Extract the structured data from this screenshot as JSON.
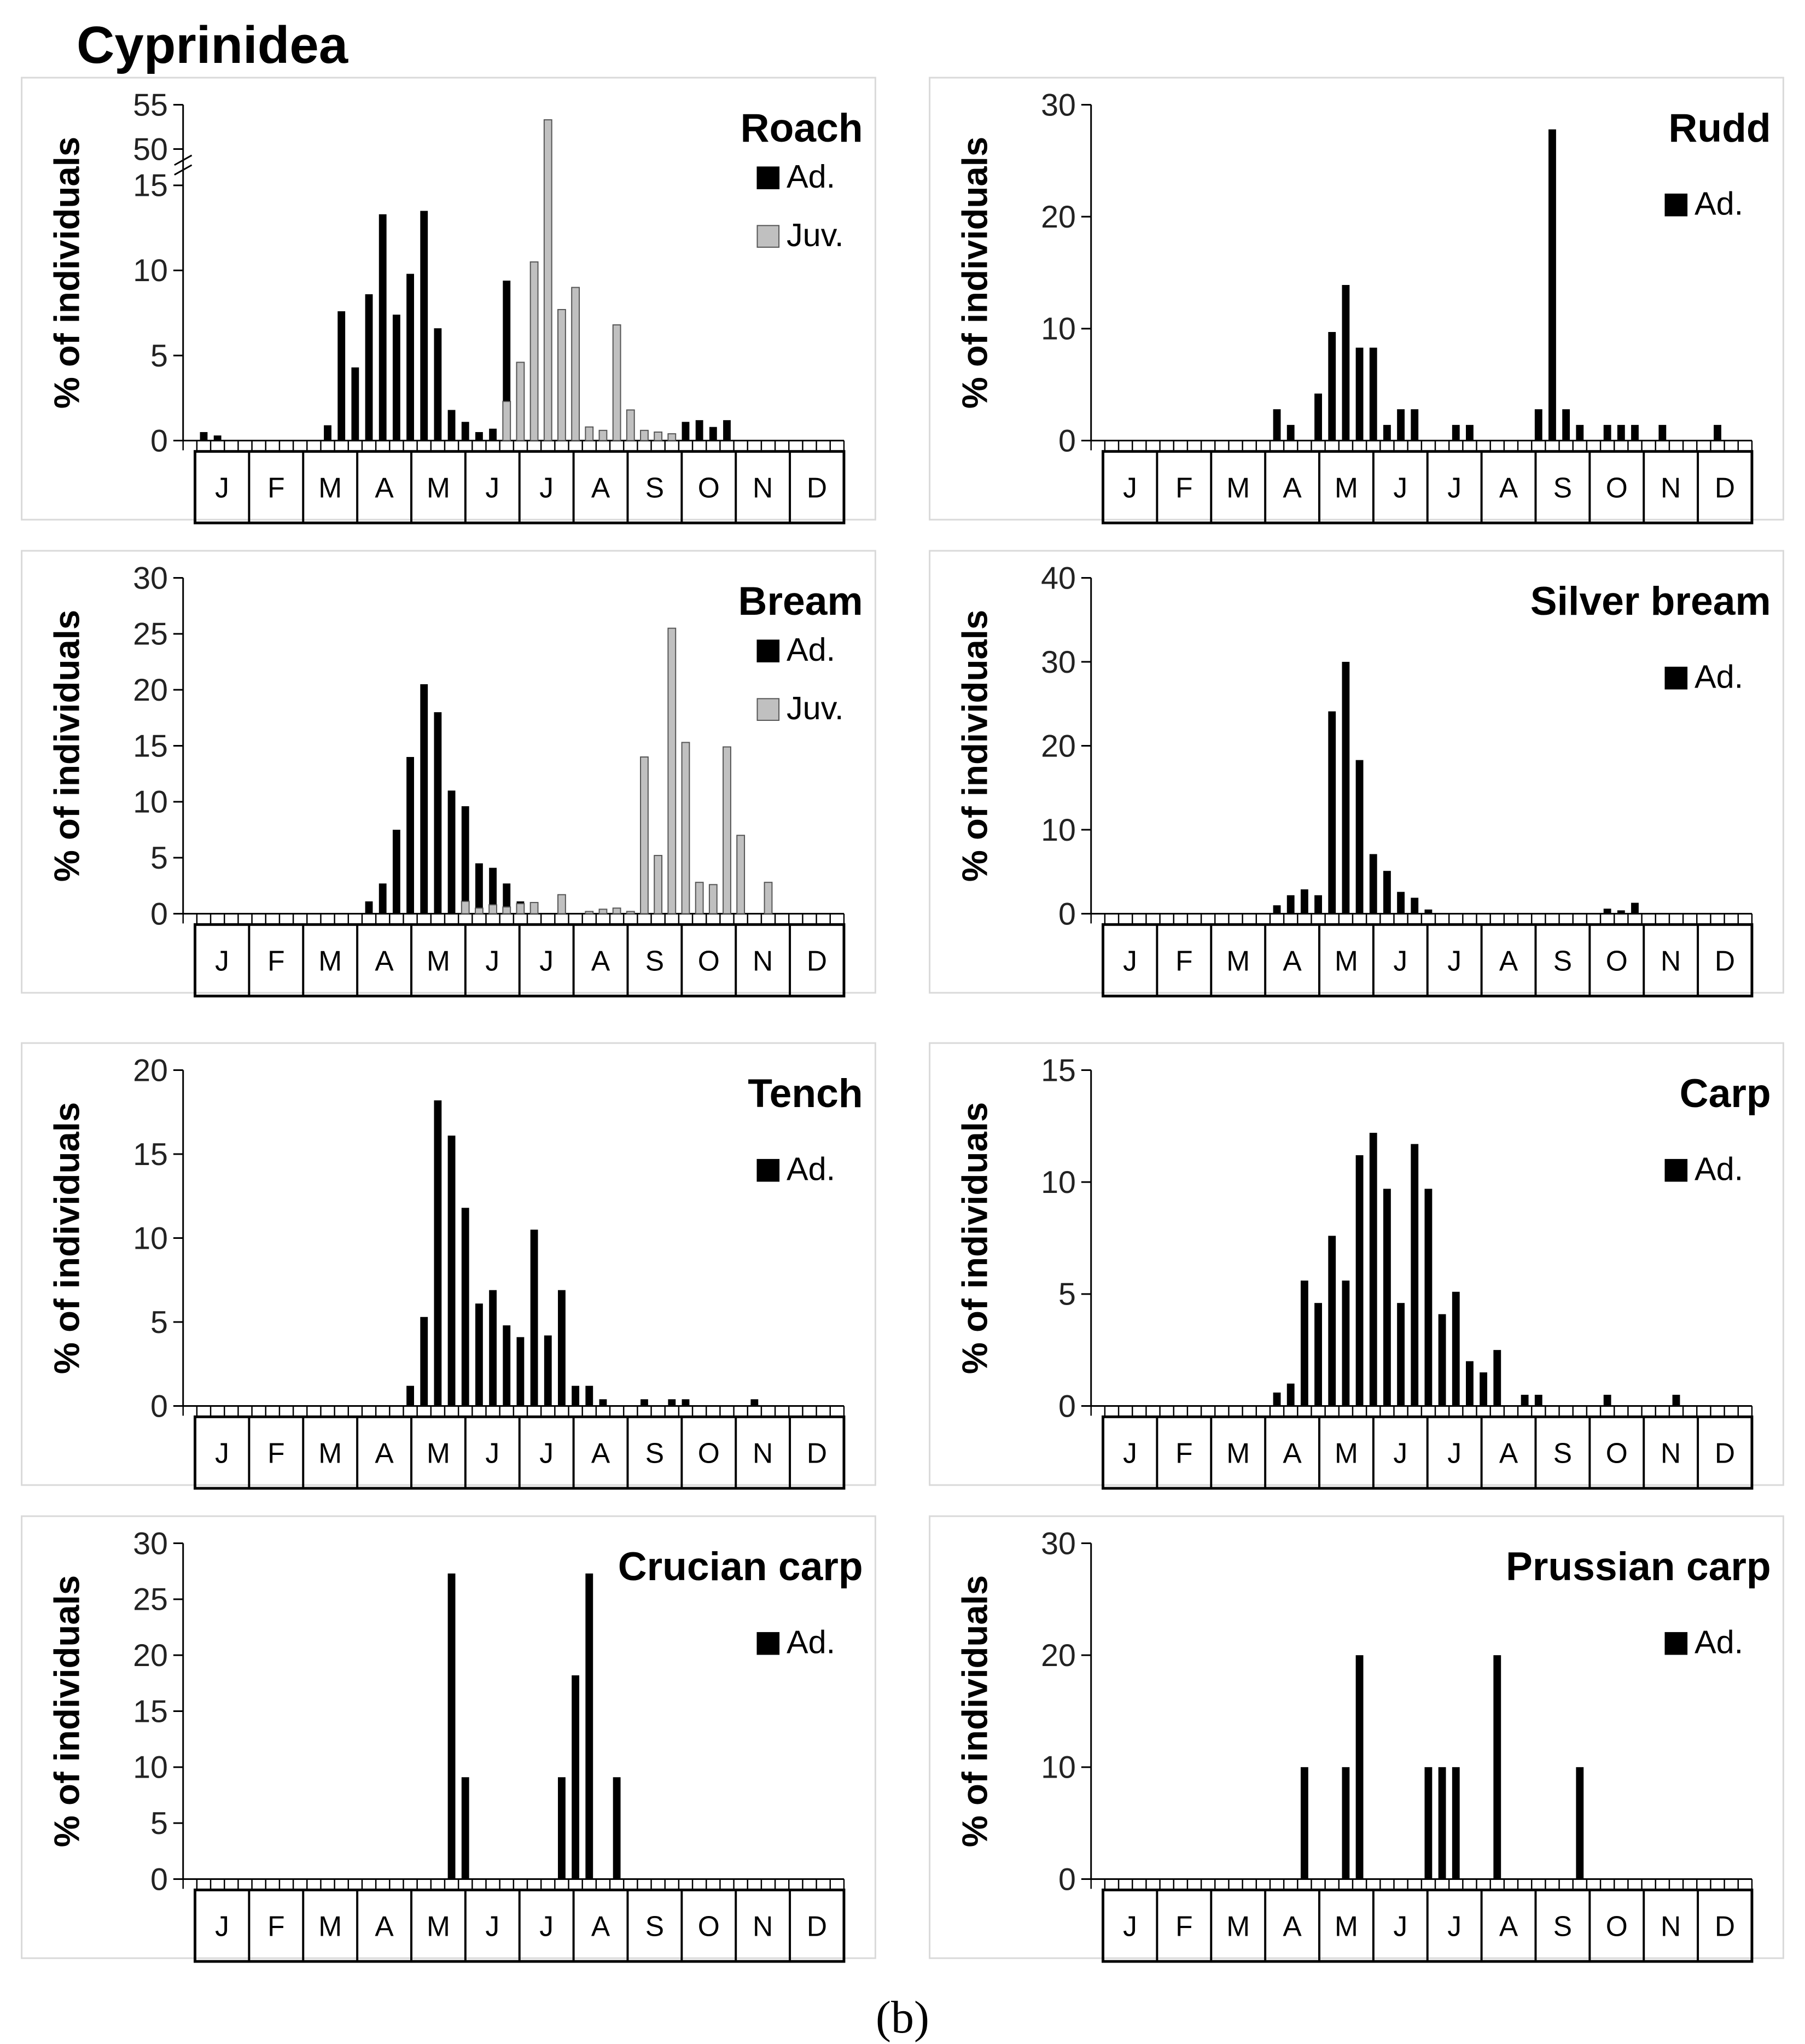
{
  "title": "Cyprinidea",
  "caption": "(b)",
  "colors": {
    "adult": "#000000",
    "juvenile": "#c0c0c0",
    "frame": "#d9d9d9",
    "axis": "#000000"
  },
  "chart_data": [
    {
      "type": "bar",
      "title": "Roach",
      "ylabel": "% of individuals",
      "ylim": [
        0,
        55
      ],
      "yaxis_break": {
        "lower": [
          0,
          15
        ],
        "upper": [
          50,
          55
        ]
      },
      "yticks": [
        0,
        5,
        10,
        15,
        50,
        55
      ],
      "x_unit": "week",
      "x_range": [
        1,
        48
      ],
      "months": [
        "J",
        "F",
        "M",
        "A",
        "M",
        "J",
        "J",
        "A",
        "S",
        "O",
        "N",
        "D"
      ],
      "legend": [
        "Ad.",
        "Juv."
      ],
      "series": [
        {
          "name": "Ad.",
          "color": "#000000",
          "x": [
            2,
            3,
            11,
            12,
            13,
            14,
            15,
            16,
            17,
            18,
            19,
            20,
            21,
            22,
            23,
            24,
            25,
            26,
            28,
            29,
            30,
            31,
            32,
            33,
            34,
            35,
            37,
            38,
            39,
            40
          ],
          "values": [
            0.5,
            0.3,
            0.9,
            7.6,
            4.3,
            8.6,
            13.3,
            7.4,
            9.8,
            13.5,
            6.6,
            1.8,
            1.1,
            0.5,
            0.7,
            9.4,
            1.9,
            0.6,
            0.8,
            0.5,
            0.4,
            0.5,
            1.4,
            1.1,
            0.4,
            0.3,
            1.1,
            1.2,
            0.8,
            1.2
          ]
        },
        {
          "name": "Juv.",
          "color": "#c0c0c0",
          "x": [
            24,
            25,
            26,
            27,
            28,
            29,
            30,
            31,
            32,
            33,
            34,
            35,
            36
          ],
          "values": [
            2.3,
            4.6,
            10.5,
            53.3,
            7.7,
            9.0,
            0.8,
            0.6,
            6.8,
            1.8,
            0.6,
            0.5,
            0.4
          ]
        }
      ]
    },
    {
      "type": "bar",
      "title": "Rudd",
      "ylabel": "% of individuals",
      "ylim": [
        0,
        30
      ],
      "yticks": [
        0,
        10,
        20,
        30
      ],
      "x_unit": "week",
      "x_range": [
        1,
        48
      ],
      "months": [
        "J",
        "F",
        "M",
        "A",
        "M",
        "J",
        "J",
        "A",
        "S",
        "O",
        "N",
        "D"
      ],
      "legend": [
        "Ad."
      ],
      "series": [
        {
          "name": "Ad.",
          "color": "#000000",
          "x": [
            14,
            15,
            17,
            18,
            19,
            20,
            21,
            22,
            23,
            24,
            27,
            28,
            33,
            34,
            35,
            36,
            38,
            39,
            40,
            42,
            46
          ],
          "values": [
            2.8,
            1.4,
            4.2,
            9.7,
            13.9,
            8.3,
            8.3,
            1.4,
            2.8,
            2.8,
            1.4,
            1.4,
            2.8,
            27.8,
            2.8,
            1.4,
            1.4,
            1.4,
            1.4,
            1.4,
            1.4
          ]
        }
      ]
    },
    {
      "type": "bar",
      "title": "Bream",
      "ylabel": "% of individuals",
      "ylim": [
        0,
        30
      ],
      "yticks": [
        0,
        5,
        10,
        15,
        20,
        25,
        30
      ],
      "x_unit": "week",
      "x_range": [
        1,
        48
      ],
      "months": [
        "J",
        "F",
        "M",
        "A",
        "M",
        "J",
        "J",
        "A",
        "S",
        "O",
        "N",
        "D"
      ],
      "legend": [
        "Ad.",
        "Juv."
      ],
      "series": [
        {
          "name": "Ad.",
          "color": "#000000",
          "x": [
            14,
            15,
            16,
            17,
            18,
            19,
            20,
            21,
            22,
            23,
            24,
            25,
            26
          ],
          "values": [
            1.1,
            2.7,
            7.5,
            14.0,
            20.5,
            18.0,
            11.0,
            9.6,
            4.5,
            4.1,
            2.7,
            1.1,
            0.7
          ]
        },
        {
          "name": "Juv.",
          "color": "#c0c0c0",
          "x": [
            21,
            22,
            23,
            24,
            25,
            26,
            28,
            30,
            31,
            32,
            33,
            34,
            35,
            36,
            37,
            38,
            39,
            40,
            41,
            43
          ],
          "values": [
            1.1,
            0.5,
            0.8,
            0.6,
            0.9,
            1.0,
            1.7,
            0.2,
            0.4,
            0.5,
            0.2,
            14.0,
            5.2,
            25.5,
            15.3,
            2.8,
            2.6,
            14.9,
            7.0,
            2.8
          ]
        }
      ]
    },
    {
      "type": "bar",
      "title": "Silver bream",
      "ylabel": "% of individuals",
      "ylim": [
        0,
        40
      ],
      "yticks": [
        0,
        10,
        20,
        30,
        40
      ],
      "x_unit": "week",
      "x_range": [
        1,
        48
      ],
      "months": [
        "J",
        "F",
        "M",
        "A",
        "M",
        "J",
        "J",
        "A",
        "S",
        "O",
        "N",
        "D"
      ],
      "legend": [
        "Ad."
      ],
      "series": [
        {
          "name": "Ad.",
          "color": "#000000",
          "x": [
            14,
            15,
            16,
            17,
            18,
            19,
            20,
            21,
            22,
            23,
            24,
            25,
            38,
            39,
            40
          ],
          "values": [
            1.0,
            2.2,
            2.9,
            2.2,
            24.1,
            30.0,
            18.3,
            7.1,
            5.1,
            2.6,
            1.9,
            0.5,
            0.6,
            0.4,
            1.3
          ]
        }
      ]
    },
    {
      "type": "bar",
      "title": "Tench",
      "ylabel": "% of individuals",
      "ylim": [
        0,
        20
      ],
      "yticks": [
        0,
        5,
        10,
        15,
        20
      ],
      "x_unit": "week",
      "x_range": [
        1,
        48
      ],
      "months": [
        "J",
        "F",
        "M",
        "A",
        "M",
        "J",
        "J",
        "A",
        "S",
        "O",
        "N",
        "D"
      ],
      "legend": [
        "Ad."
      ],
      "series": [
        {
          "name": "Ad.",
          "color": "#000000",
          "x": [
            17,
            18,
            19,
            20,
            21,
            22,
            23,
            24,
            25,
            26,
            27,
            28,
            29,
            30,
            31,
            34,
            36,
            37,
            42
          ],
          "values": [
            1.2,
            5.3,
            18.2,
            16.1,
            11.8,
            6.1,
            6.9,
            4.8,
            4.1,
            10.5,
            4.2,
            6.9,
            1.2,
            1.2,
            0.4,
            0.4,
            0.4,
            0.4,
            0.4
          ]
        }
      ]
    },
    {
      "type": "bar",
      "title": "Carp",
      "ylabel": "% of individuals",
      "ylim": [
        0,
        15
      ],
      "yticks": [
        0,
        5,
        10,
        15
      ],
      "x_unit": "week",
      "x_range": [
        1,
        48
      ],
      "months": [
        "J",
        "F",
        "M",
        "A",
        "M",
        "J",
        "J",
        "A",
        "S",
        "O",
        "N",
        "D"
      ],
      "legend": [
        "Ad."
      ],
      "series": [
        {
          "name": "Ad.",
          "color": "#000000",
          "x": [
            14,
            15,
            16,
            17,
            18,
            19,
            20,
            21,
            22,
            23,
            24,
            25,
            26,
            27,
            28,
            29,
            30,
            32,
            33,
            38,
            43
          ],
          "values": [
            0.6,
            1.0,
            5.6,
            4.6,
            7.6,
            5.6,
            11.2,
            12.2,
            9.7,
            4.6,
            11.7,
            9.7,
            4.1,
            5.1,
            2.0,
            1.5,
            2.5,
            0.5,
            0.5,
            0.5,
            0.5
          ]
        }
      ]
    },
    {
      "type": "bar",
      "title": "Crucian carp",
      "ylabel": "% of individuals",
      "ylim": [
        0,
        30
      ],
      "yticks": [
        0,
        5,
        10,
        15,
        20,
        25,
        30
      ],
      "x_unit": "week",
      "x_range": [
        1,
        48
      ],
      "months": [
        "J",
        "F",
        "M",
        "A",
        "M",
        "J",
        "J",
        "A",
        "S",
        "O",
        "N",
        "D"
      ],
      "legend": [
        "Ad."
      ],
      "series": [
        {
          "name": "Ad.",
          "color": "#000000",
          "x": [
            20,
            21,
            28,
            29,
            30,
            32
          ],
          "values": [
            27.3,
            9.1,
            9.1,
            18.2,
            27.3,
            9.1
          ]
        }
      ]
    },
    {
      "type": "bar",
      "title": "Prussian carp",
      "ylabel": "% of individuals",
      "ylim": [
        0,
        30
      ],
      "yticks": [
        0,
        10,
        20,
        30
      ],
      "x_unit": "week",
      "x_range": [
        1,
        48
      ],
      "months": [
        "J",
        "F",
        "M",
        "A",
        "M",
        "J",
        "J",
        "A",
        "S",
        "O",
        "N",
        "D"
      ],
      "legend": [
        "Ad."
      ],
      "series": [
        {
          "name": "Ad.",
          "color": "#000000",
          "x": [
            16,
            19,
            20,
            25,
            26,
            27,
            30,
            36
          ],
          "values": [
            10,
            10,
            20,
            10,
            10,
            10,
            20,
            10
          ]
        }
      ]
    }
  ]
}
